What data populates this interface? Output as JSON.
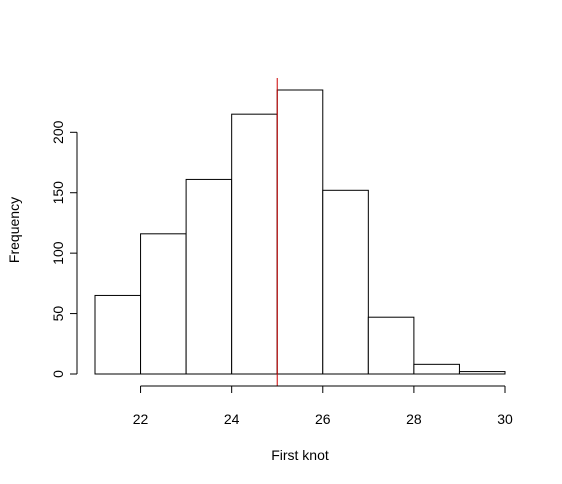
{
  "chart_data": {
    "type": "bar",
    "subtype": "histogram",
    "title": "",
    "xlabel": "First knot",
    "ylabel": "Frequency",
    "bins": [
      {
        "from": 21,
        "to": 22,
        "count": 65
      },
      {
        "from": 22,
        "to": 23,
        "count": 116
      },
      {
        "from": 23,
        "to": 24,
        "count": 161
      },
      {
        "from": 24,
        "to": 25,
        "count": 215
      },
      {
        "from": 25,
        "to": 26,
        "count": 235
      },
      {
        "from": 26,
        "to": 27,
        "count": 152
      },
      {
        "from": 27,
        "to": 28,
        "count": 47
      },
      {
        "from": 28,
        "to": 29,
        "count": 8
      },
      {
        "from": 29,
        "to": 30,
        "count": 2
      }
    ],
    "xlim": [
      21,
      30
    ],
    "ylim": [
      0,
      235
    ],
    "x_ticks": [
      "22",
      "24",
      "26",
      "28",
      "30"
    ],
    "y_ticks": [
      "0",
      "50",
      "100",
      "150",
      "200"
    ],
    "grid": false,
    "reference_line": {
      "x": 25,
      "color": "#cc0000"
    },
    "colors": {
      "bar_fill": "#ffffff",
      "bar_stroke": "#000000"
    }
  }
}
